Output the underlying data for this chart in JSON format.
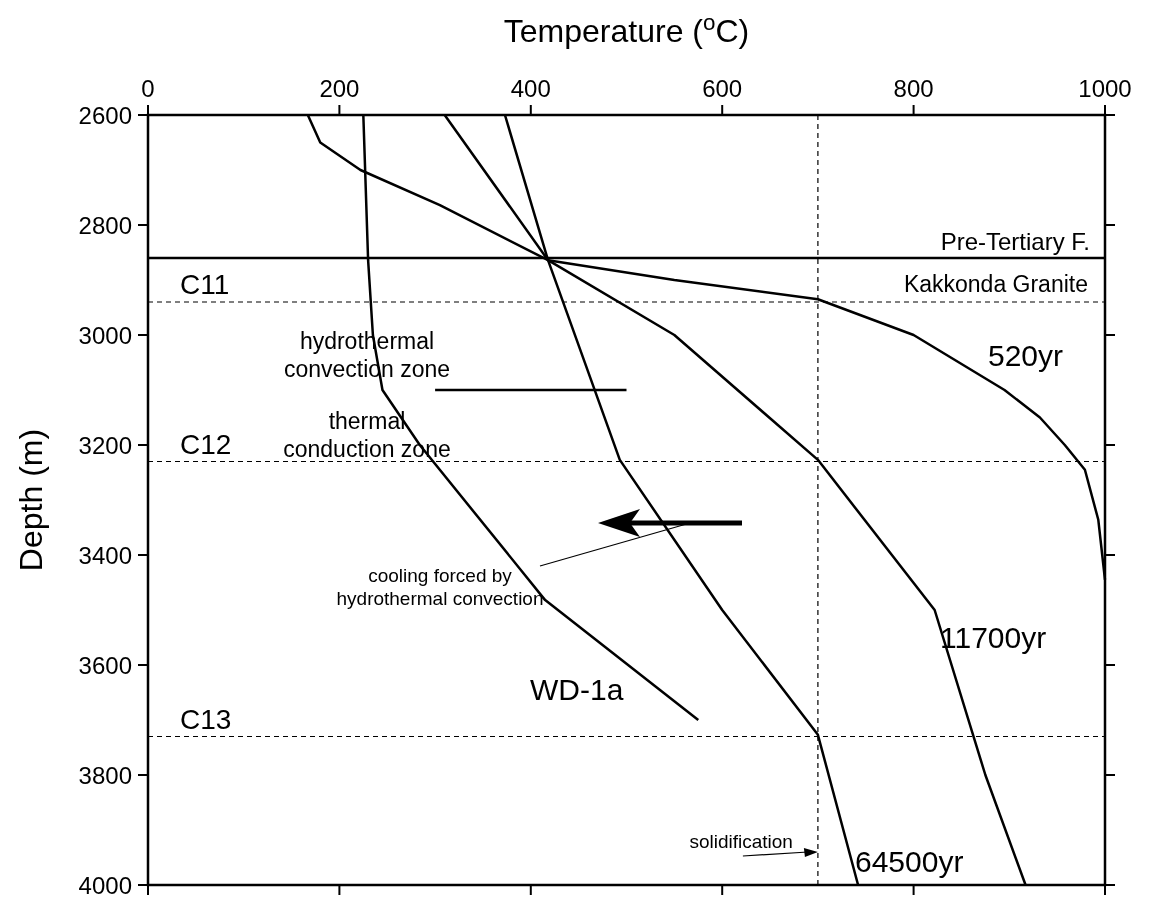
{
  "chart_data": {
    "type": "line",
    "xlabel": "Temperature ($^{o}$C)",
    "ylabel": "Depth (m)",
    "xlim": [
      0,
      1000
    ],
    "ylim": [
      4000,
      2600
    ],
    "xticks": [
      0,
      200,
      400,
      600,
      800,
      1000
    ],
    "yticks": [
      2600,
      2800,
      3000,
      3200,
      3400,
      3600,
      3800,
      4000
    ],
    "grid": false,
    "marker": "none",
    "line_style": "solid",
    "series": [
      {
        "name": "520yr",
        "color": "#000000",
        "x": [
          167,
          180,
          222,
          305,
          418,
          550,
          700,
          800,
          895,
          932,
          958,
          979,
          993,
          1000
        ],
        "values": [
          2600,
          2650,
          2700,
          2764,
          2864,
          2900,
          2935,
          3000,
          3100,
          3150,
          3200,
          3245,
          3336,
          3445
        ]
      },
      {
        "name": "11700yr",
        "color": "#000000",
        "x": [
          310,
          418,
          550,
          700,
          822,
          875,
          917
        ],
        "values": [
          2600,
          2864,
          3000,
          3227,
          3500,
          3800,
          4000
        ]
      },
      {
        "name": "64500yr",
        "color": "#000000",
        "x": [
          373,
          418,
          493,
          600,
          700,
          742
        ],
        "values": [
          2600,
          2864,
          3227,
          3500,
          3727,
          4000
        ]
      },
      {
        "name": "WD-1a",
        "color": "#000000",
        "x": [
          225,
          230,
          235,
          245,
          284,
          415,
          575
        ],
        "values": [
          2600,
          2864,
          3000,
          3100,
          3200,
          3482,
          3700
        ]
      },
      {
        "color": "#000000",
        "x": [
          300,
          500
        ],
        "values": [
          3100,
          3100
        ]
      }
    ],
    "ref_lines": [
      {
        "axis": "y",
        "value": 2860,
        "label": "Pre-Tertiary F.",
        "line_style": "solid"
      },
      {
        "axis": "y",
        "value": 2940,
        "label": "C11",
        "line_style": "dashed"
      },
      {
        "axis": "y",
        "value": 3230,
        "label": "C12",
        "line_style": "dashed"
      },
      {
        "axis": "y",
        "value": 3730,
        "label": "C13",
        "line_style": "dashed"
      },
      {
        "axis": "x",
        "value": 700,
        "line_style": "dashed"
      }
    ],
    "annotations": [
      "Kakkonda Granite",
      "hydrothermal\nconvection zone",
      "thermal\nconduction zone",
      "cooling forced by\nhydrothermal convection",
      {
        "text": "solidification",
        "x": 700,
        "y": 3940
      }
    ]
  }
}
